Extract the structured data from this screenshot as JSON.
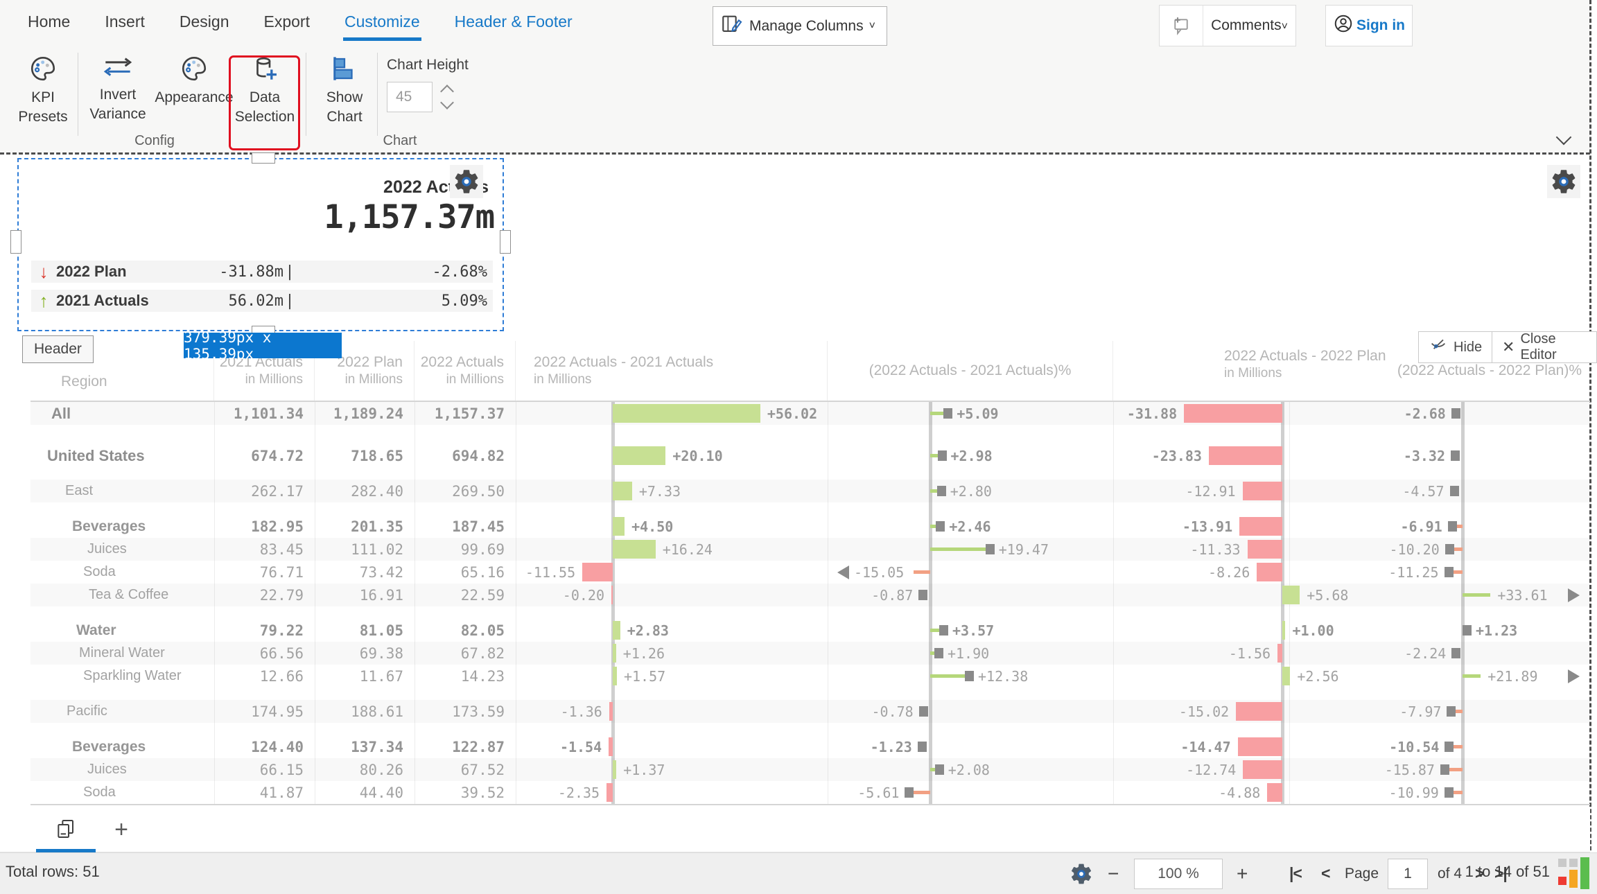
{
  "menu": {
    "items": [
      {
        "label": "Home",
        "active": false,
        "accent": false
      },
      {
        "label": "Insert",
        "active": false,
        "accent": false
      },
      {
        "label": "Design",
        "active": false,
        "accent": false
      },
      {
        "label": "Export",
        "active": false,
        "accent": false
      },
      {
        "label": "Customize",
        "active": true,
        "accent": true
      },
      {
        "label": "Header & Footer",
        "active": false,
        "accent": true
      }
    ]
  },
  "topbar": {
    "manage_columns": "Manage Columns",
    "comments": "Comments",
    "sign_in": "Sign in"
  },
  "ribbon": {
    "kpi_presets": "KPI Presets",
    "invert_variance": "Invert Variance",
    "appearance": "Appearance",
    "data_selection": "Data Selection",
    "show_chart": "Show Chart",
    "chart_height_label": "Chart Height",
    "chart_height_value": "45",
    "group_config": "Config",
    "group_chart": "Chart"
  },
  "kpi_card": {
    "title": "2022 Actuals",
    "value": "1,157.37m",
    "size_tooltip": "379.39px x 135.39px",
    "rows": [
      {
        "direction": "down",
        "label": "2022 Plan",
        "value": "-31.88m",
        "separator": "|",
        "pct": "-2.68%"
      },
      {
        "direction": "up",
        "label": "2021 Actuals",
        "value": "56.02m",
        "separator": "|",
        "pct": "5.09%"
      }
    ]
  },
  "editor": {
    "header_chip": "Header",
    "hide_label": "Hide",
    "close_label": "Close Editor"
  },
  "chart_data": {
    "type": "table",
    "columns": [
      {
        "id": "region",
        "label": "Region",
        "sub": ""
      },
      {
        "id": "a2021",
        "label": "2021 Actuals",
        "sub": "in Millions"
      },
      {
        "id": "p2022",
        "label": "2022 Plan",
        "sub": "in Millions"
      },
      {
        "id": "a2022",
        "label": "2022 Actuals",
        "sub": "in Millions"
      },
      {
        "id": "var_aa",
        "label": "2022 Actuals - 2021 Actuals",
        "sub": "in Millions",
        "kind": "bar"
      },
      {
        "id": "pct_aa",
        "label": "(2022 Actuals - 2021 Actuals)%",
        "sub": "",
        "kind": "pin"
      },
      {
        "id": "var_ap",
        "label": "2022 Actuals - 2022 Plan",
        "sub": "in Millions",
        "kind": "bar"
      },
      {
        "id": "pct_ap",
        "label": "(2022 Actuals - 2022 Plan)%",
        "sub": "",
        "kind": "pin"
      }
    ],
    "rows": [
      {
        "region": "All",
        "indent": 30,
        "weight": "bold",
        "gap": 0,
        "a2021": "1,101.34",
        "p2022": "1,189.24",
        "a2022": "1,157.37",
        "var_aa": 56.02,
        "var_aa_label": "+56.02",
        "pct_aa": 5.09,
        "pct_aa_label": "+5.09",
        "var_ap": -31.88,
        "var_ap_label": "-31.88",
        "pct_ap": -2.68,
        "pct_ap_label": "-2.68"
      },
      {
        "region": "United States",
        "indent": 24,
        "weight": "bold",
        "gap": 28,
        "a2021": "674.72",
        "p2022": "718.65",
        "a2022": "694.82",
        "var_aa": 20.1,
        "var_aa_label": "+20.10",
        "pct_aa": 2.98,
        "pct_aa_label": "+2.98",
        "var_ap": -23.83,
        "var_ap_label": "-23.83",
        "pct_ap": -3.32,
        "pct_ap_label": "-3.32"
      },
      {
        "region": "East",
        "indent": 50,
        "weight": "norm",
        "gap": 18,
        "a2021": "262.17",
        "p2022": "282.40",
        "a2022": "269.50",
        "var_aa": 7.33,
        "var_aa_label": "+7.33",
        "pct_aa": 2.8,
        "pct_aa_label": "+2.80",
        "var_ap": -12.91,
        "var_ap_label": "-12.91",
        "pct_ap": -4.57,
        "pct_ap_label": "-4.57"
      },
      {
        "region": "Beverages",
        "indent": 60,
        "weight": "semi",
        "gap": 18,
        "a2021": "182.95",
        "p2022": "201.35",
        "a2022": "187.45",
        "var_aa": 4.5,
        "var_aa_label": "+4.50",
        "pct_aa": 2.46,
        "pct_aa_label": "+2.46",
        "var_ap": -13.91,
        "var_ap_label": "-13.91",
        "pct_ap": -6.91,
        "pct_ap_label": "-6.91"
      },
      {
        "region": "Juices",
        "indent": 82,
        "weight": "norm",
        "gap": 0,
        "a2021": "83.45",
        "p2022": "111.02",
        "a2022": "99.69",
        "var_aa": 16.24,
        "var_aa_label": "+16.24",
        "pct_aa": 19.47,
        "pct_aa_label": "+19.47",
        "var_ap": -11.33,
        "var_ap_label": "-11.33",
        "pct_ap": -10.2,
        "pct_ap_label": "-10.20"
      },
      {
        "region": "Soda",
        "indent": 76,
        "weight": "norm",
        "gap": 0,
        "a2021": "76.71",
        "p2022": "73.42",
        "a2022": "65.16",
        "var_aa": -11.55,
        "var_aa_label": "-11.55",
        "pct_aa": -15.05,
        "pct_aa_label": "-15.05",
        "pct_aa_clip": "left",
        "var_ap": -8.26,
        "var_ap_label": "-8.26",
        "pct_ap": -11.25,
        "pct_ap_label": "-11.25"
      },
      {
        "region": "Tea & Coffee",
        "indent": 84,
        "weight": "norm",
        "gap": 0,
        "a2021": "22.79",
        "p2022": "16.91",
        "a2022": "22.59",
        "var_aa": -0.2,
        "var_aa_label": "-0.20",
        "pct_aa": -0.87,
        "pct_aa_label": "-0.87",
        "var_ap": 5.68,
        "var_ap_label": "+5.68",
        "pct_ap": 33.61,
        "pct_ap_label": "+33.61",
        "pct_ap_clip": "right"
      },
      {
        "region": "Water",
        "indent": 66,
        "weight": "semi",
        "gap": 18,
        "a2021": "79.22",
        "p2022": "81.05",
        "a2022": "82.05",
        "var_aa": 2.83,
        "var_aa_label": "+2.83",
        "pct_aa": 3.57,
        "pct_aa_label": "+3.57",
        "var_ap": 1.0,
        "var_ap_label": "+1.00",
        "pct_ap": 1.23,
        "pct_ap_label": "+1.23"
      },
      {
        "region": "Mineral Water",
        "indent": 70,
        "weight": "norm",
        "gap": 0,
        "a2021": "66.56",
        "p2022": "69.38",
        "a2022": "67.82",
        "var_aa": 1.26,
        "var_aa_label": "+1.26",
        "pct_aa": 1.9,
        "pct_aa_label": "+1.90",
        "var_ap": -1.56,
        "var_ap_label": "-1.56",
        "pct_ap": -2.24,
        "pct_ap_label": "-2.24"
      },
      {
        "region": "Sparkling Water",
        "indent": 76,
        "weight": "norm",
        "gap": 0,
        "a2021": "12.66",
        "p2022": "11.67",
        "a2022": "14.23",
        "var_aa": 1.57,
        "var_aa_label": "+1.57",
        "pct_aa": 12.38,
        "pct_aa_label": "+12.38",
        "var_ap": 2.56,
        "var_ap_label": "+2.56",
        "pct_ap": 21.89,
        "pct_ap_label": "+21.89",
        "pct_ap_clip": "right"
      },
      {
        "region": "Pacific",
        "indent": 52,
        "weight": "norm",
        "gap": 18,
        "a2021": "174.95",
        "p2022": "188.61",
        "a2022": "173.59",
        "var_aa": -1.36,
        "var_aa_label": "-1.36",
        "pct_aa": -0.78,
        "pct_aa_label": "-0.78",
        "var_ap": -15.02,
        "var_ap_label": "-15.02",
        "pct_ap": -7.97,
        "pct_ap_label": "-7.97"
      },
      {
        "region": "Beverages",
        "indent": 60,
        "weight": "semi",
        "gap": 18,
        "a2021": "124.40",
        "p2022": "137.34",
        "a2022": "122.87",
        "var_aa": -1.54,
        "var_aa_label": "-1.54",
        "pct_aa": -1.23,
        "pct_aa_label": "-1.23",
        "var_ap": -14.47,
        "var_ap_label": "-14.47",
        "pct_ap": -10.54,
        "pct_ap_label": "-10.54"
      },
      {
        "region": "Juices",
        "indent": 82,
        "weight": "norm",
        "gap": 0,
        "a2021": "66.15",
        "p2022": "80.26",
        "a2022": "67.52",
        "var_aa": 1.37,
        "var_aa_label": "+1.37",
        "pct_aa": 2.08,
        "pct_aa_label": "+2.08",
        "var_ap": -12.74,
        "var_ap_label": "-12.74",
        "pct_ap": -15.87,
        "pct_ap_label": "-15.87"
      },
      {
        "region": "Soda",
        "indent": 76,
        "weight": "norm",
        "gap": 0,
        "a2021": "41.87",
        "p2022": "44.40",
        "a2022": "39.52",
        "var_aa": -2.35,
        "var_aa_label": "-2.35",
        "pct_aa": -5.61,
        "pct_aa_label": "-5.61",
        "var_ap": -4.88,
        "var_ap_label": "-4.88",
        "pct_ap": -10.99,
        "pct_ap_label": "-10.99"
      }
    ]
  },
  "footer": {
    "total_rows": "Total rows: 51",
    "zoom_value": "100 %",
    "minus": "−",
    "plus": "+",
    "pager": {
      "first": "|<",
      "prev": "<",
      "page_label": "Page",
      "page_value": "1",
      "of": "of 4",
      "next": ">",
      "last": ">|"
    },
    "range": "1 to 14 of 51"
  },
  "colors": {
    "accent_blue": "#1779c8",
    "positive_green": "#c7e093",
    "negative_red": "#f89fa2",
    "stem_green": "#b5d77a",
    "stem_salmon": "#f2a083",
    "marker_gray": "#8a8a8a",
    "tooltip_blue": "#0c77cf",
    "highlight_red": "#e01020"
  }
}
